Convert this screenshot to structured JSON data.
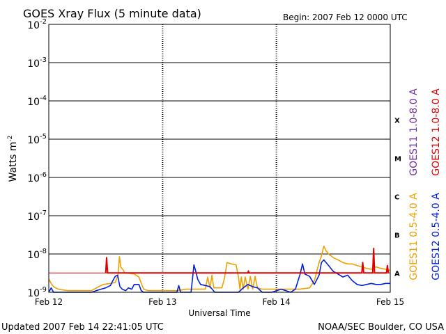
{
  "header": {
    "title": "GOES Xray Flux (5 minute data)",
    "begin": "Begin:  2007 Feb 12 0000 UTC"
  },
  "footer": {
    "updated": "Updated 2007 Feb 14 22:41:05 UTC",
    "credit": "NOAA/SEC Boulder, CO USA"
  },
  "colors": {
    "goes11_long": "#7030a0",
    "goes12_long": "#e00000",
    "goes11_short": "#f0a000",
    "goes12_short": "#0020e0",
    "threshold": "#e00000"
  },
  "chart_data": {
    "type": "line",
    "title": "GOES Xray Flux (5 minute data)",
    "xlabel": "Universal Time",
    "ylabel": "Watts m",
    "ylabel_sup": "-2",
    "yscale": "log",
    "ylim": [
      1e-09,
      0.01
    ],
    "xlim": [
      0,
      72
    ],
    "x_units": "hours since 2007 Feb 12 0000 UTC",
    "x_ticks": [
      {
        "x": 0,
        "label": "Feb 12"
      },
      {
        "x": 24,
        "label": "Feb 13"
      },
      {
        "x": 48,
        "label": "Feb 14"
      },
      {
        "x": 72,
        "label": "Feb 15"
      }
    ],
    "y_ticks": [
      {
        "exp": -2,
        "base": "10",
        "sup": "-2"
      },
      {
        "exp": -3,
        "base": "10",
        "sup": "-3"
      },
      {
        "exp": -4,
        "base": "10",
        "sup": "-4"
      },
      {
        "exp": -5,
        "base": "10",
        "sup": "-5"
      },
      {
        "exp": -6,
        "base": "10",
        "sup": "-6"
      },
      {
        "exp": -7,
        "base": "10",
        "sup": "-7"
      },
      {
        "exp": -8,
        "base": "10",
        "sup": "-8"
      },
      {
        "exp": -9,
        "base": "10",
        "sup": "-9"
      }
    ],
    "flare_classes": [
      {
        "label": "X",
        "exp": -4
      },
      {
        "label": "M",
        "exp": -5
      },
      {
        "label": "C",
        "exp": -6
      },
      {
        "label": "B",
        "exp": -7
      },
      {
        "label": "A",
        "exp": -8
      }
    ],
    "threshold": 3.2e-09,
    "series": [
      {
        "name": "GOES11 1.0-8.0 A",
        "color": "#7030a0",
        "values": []
      },
      {
        "name": "GOES12 1.0-8.0 A",
        "color": "#e00000",
        "values": [
          [
            12.0,
            3.2e-09
          ],
          [
            12.2,
            8e-09
          ],
          [
            12.4,
            3.2e-09
          ],
          [
            42.0,
            3.2e-09
          ],
          [
            42.1,
            3.6e-09
          ],
          [
            42.2,
            3.2e-09
          ],
          [
            66.0,
            3.2e-09
          ],
          [
            66.2,
            6e-09
          ],
          [
            66.4,
            3.2e-09
          ],
          [
            68.3,
            3.2e-09
          ],
          [
            68.5,
            1.4e-08
          ],
          [
            68.7,
            3.2e-09
          ],
          [
            71.2,
            3.2e-09
          ],
          [
            71.4,
            5e-09
          ],
          [
            71.6,
            3.2e-09
          ]
        ]
      },
      {
        "name": "GOES11 0.5-4.0 A",
        "color": "#f0a000",
        "values": [
          [
            0,
            2.2e-09
          ],
          [
            0.5,
            1.7e-09
          ],
          [
            1.0,
            1.4e-09
          ],
          [
            2.0,
            1.2e-09
          ],
          [
            4.0,
            1.1e-09
          ],
          [
            6.0,
            1.1e-09
          ],
          [
            9.0,
            1.1e-09
          ],
          [
            10.5,
            1.4e-09
          ],
          [
            11.5,
            1.6e-09
          ],
          [
            13.0,
            1.7e-09
          ],
          [
            14.0,
            1.8e-09
          ],
          [
            14.6,
            2.8e-09
          ],
          [
            14.9,
            8.5e-09
          ],
          [
            15.2,
            4.5e-09
          ],
          [
            15.6,
            4e-09
          ],
          [
            16.0,
            3.2e-09
          ],
          [
            17.0,
            3.1e-09
          ],
          [
            18.0,
            3e-09
          ],
          [
            19.0,
            2.5e-09
          ],
          [
            20.0,
            1.2e-09
          ],
          [
            21.0,
            1.1e-09
          ],
          [
            24.0,
            1.1e-09
          ],
          [
            27.0,
            1.1e-09
          ],
          [
            29.0,
            1.2e-09
          ],
          [
            31.0,
            1.2e-09
          ],
          [
            33.0,
            1.2e-09
          ],
          [
            33.5,
            2.5e-09
          ],
          [
            34.0,
            1.3e-09
          ],
          [
            34.4,
            2.8e-09
          ],
          [
            34.8,
            1.3e-09
          ],
          [
            36.5,
            1.3e-09
          ],
          [
            37.0,
            2.2e-09
          ],
          [
            37.6,
            6e-09
          ],
          [
            38.5,
            5.5e-09
          ],
          [
            39.5,
            5.2e-09
          ],
          [
            40.0,
            2.5e-09
          ],
          [
            40.3,
            1.2e-09
          ],
          [
            40.6,
            2.5e-09
          ],
          [
            41.0,
            1.2e-09
          ],
          [
            41.4,
            2.5e-09
          ],
          [
            42.0,
            1.2e-09
          ],
          [
            42.5,
            2.6e-09
          ],
          [
            43.0,
            1.2e-09
          ],
          [
            43.5,
            2.6e-09
          ],
          [
            44.0,
            1.3e-09
          ],
          [
            45.0,
            1.2e-09
          ],
          [
            48.0,
            1.2e-09
          ],
          [
            51.0,
            1.2e-09
          ],
          [
            53.0,
            1.2e-09
          ],
          [
            55.0,
            1.3e-09
          ],
          [
            56.0,
            2e-09
          ],
          [
            57.0,
            6e-09
          ],
          [
            57.5,
            9e-09
          ],
          [
            58.0,
            1.6e-08
          ],
          [
            58.5,
            1.2e-08
          ],
          [
            59.0,
            1e-08
          ],
          [
            60.0,
            8e-09
          ],
          [
            61.0,
            7e-09
          ],
          [
            62.0,
            6e-09
          ],
          [
            63.0,
            5.5e-09
          ],
          [
            64.0,
            5.5e-09
          ],
          [
            65.0,
            5e-09
          ],
          [
            66.0,
            4.6e-09
          ],
          [
            67.0,
            4.2e-09
          ],
          [
            68.0,
            4e-09
          ],
          [
            69.0,
            4.6e-09
          ],
          [
            70.0,
            4.2e-09
          ],
          [
            71.0,
            4e-09
          ],
          [
            72.0,
            3.7e-09
          ]
        ]
      },
      {
        "name": "GOES12 0.5-4.0 A",
        "color": "#0020e0",
        "values": [
          [
            0,
            1e-09
          ],
          [
            0.5,
            1.3e-09
          ],
          [
            1.0,
            1e-09
          ],
          [
            9.0,
            1e-09
          ],
          [
            10.0,
            1.1e-09
          ],
          [
            11.0,
            1.2e-09
          ],
          [
            12.0,
            1.3e-09
          ],
          [
            13.0,
            1.5e-09
          ],
          [
            13.5,
            2e-09
          ],
          [
            14.0,
            2.6e-09
          ],
          [
            14.5,
            2.8e-09
          ],
          [
            15.0,
            1.4e-09
          ],
          [
            15.5,
            1.2e-09
          ],
          [
            16.2,
            1.1e-09
          ],
          [
            16.8,
            1.3e-09
          ],
          [
            17.5,
            1.2e-09
          ],
          [
            18.0,
            1.6e-09
          ],
          [
            19.0,
            1.6e-09
          ],
          [
            19.5,
            1.1e-09
          ],
          [
            20.0,
            1e-09
          ],
          [
            27.0,
            1e-09
          ],
          [
            27.4,
            1.5e-09
          ],
          [
            27.8,
            1e-09
          ],
          [
            30.0,
            1e-09
          ],
          [
            30.6,
            5.2e-09
          ],
          [
            31.0,
            3.5e-09
          ],
          [
            31.4,
            2.2e-09
          ],
          [
            32.0,
            1.6e-09
          ],
          [
            33.0,
            1.5e-09
          ],
          [
            34.0,
            1.4e-09
          ],
          [
            35.0,
            1e-09
          ],
          [
            39.0,
            1e-09
          ],
          [
            40.0,
            1e-09
          ],
          [
            41.0,
            1.3e-09
          ],
          [
            42.0,
            1.6e-09
          ],
          [
            43.0,
            1.4e-09
          ],
          [
            44.0,
            1.3e-09
          ],
          [
            45.0,
            1e-09
          ],
          [
            47.0,
            1e-09
          ],
          [
            48.0,
            1.1e-09
          ],
          [
            49.0,
            1.2e-09
          ],
          [
            50.0,
            1.1e-09
          ],
          [
            51.0,
            1e-09
          ],
          [
            52.0,
            1.2e-09
          ],
          [
            53.0,
            3e-09
          ],
          [
            53.5,
            5.5e-09
          ],
          [
            54.0,
            3e-09
          ],
          [
            55.0,
            2.6e-09
          ],
          [
            56.0,
            1.6e-09
          ],
          [
            57.0,
            2.8e-09
          ],
          [
            57.5,
            6e-09
          ],
          [
            58.0,
            7e-09
          ],
          [
            59.0,
            5e-09
          ],
          [
            60.0,
            3.5e-09
          ],
          [
            61.0,
            3e-09
          ],
          [
            62.0,
            2.5e-09
          ],
          [
            63.0,
            2.8e-09
          ],
          [
            64.0,
            2e-09
          ],
          [
            65.0,
            1.6e-09
          ],
          [
            66.0,
            1.5e-09
          ],
          [
            67.0,
            1.6e-09
          ],
          [
            68.0,
            1.7e-09
          ],
          [
            69.0,
            1.6e-09
          ],
          [
            70.0,
            1.6e-09
          ],
          [
            71.0,
            1.7e-09
          ],
          [
            72.0,
            1.7e-09
          ]
        ]
      }
    ]
  }
}
